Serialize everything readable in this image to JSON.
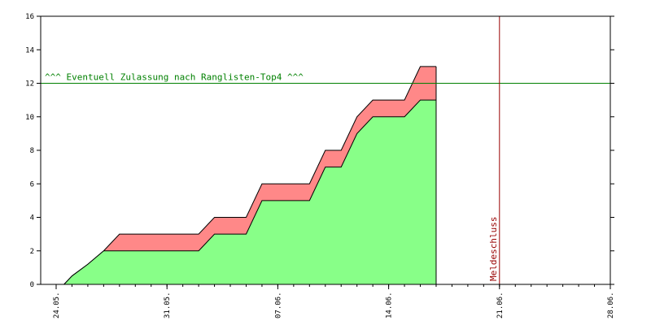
{
  "chart_data": {
    "type": "area",
    "title": "",
    "xlabel": "",
    "ylabel": "",
    "ylim": [
      0,
      16
    ],
    "y_ticks": [
      "0",
      "2",
      "4",
      "6",
      "8",
      "10",
      "12",
      "14",
      "16"
    ],
    "x_range_days": [
      "2020-05-23",
      "2020-06-28"
    ],
    "x_ticks": [
      {
        "date": "2020-05-24",
        "label": "24.05."
      },
      {
        "date": "2020-05-31",
        "label": "31.05."
      },
      {
        "date": "2020-06-07",
        "label": "07.06."
      },
      {
        "date": "2020-06-14",
        "label": "14.06."
      },
      {
        "date": "2020-06-21",
        "label": "21.06."
      },
      {
        "date": "2020-06-28",
        "label": "28.06."
      }
    ],
    "series": [
      {
        "color": "#88ff88",
        "points": [
          [
            "2020-05-24 12:00",
            0
          ],
          [
            "2020-05-25",
            0.5
          ],
          [
            "2020-05-26",
            1.2
          ],
          [
            "2020-05-27",
            2
          ],
          [
            "2020-06-02",
            2
          ],
          [
            "2020-06-03",
            3
          ],
          [
            "2020-06-05",
            3
          ],
          [
            "2020-06-06",
            5
          ],
          [
            "2020-06-09",
            5
          ],
          [
            "2020-06-10",
            7
          ],
          [
            "2020-06-11",
            7
          ],
          [
            "2020-06-12",
            9
          ],
          [
            "2020-06-13",
            10
          ],
          [
            "2020-06-15",
            10
          ],
          [
            "2020-06-16",
            11
          ],
          [
            "2020-06-17",
            11
          ]
        ]
      },
      {
        "color": "#ff8888",
        "points": [
          [
            "2020-05-24 12:00",
            0
          ],
          [
            "2020-05-25",
            0.5
          ],
          [
            "2020-05-26",
            1.2
          ],
          [
            "2020-05-27",
            2
          ],
          [
            "2020-05-28",
            3
          ],
          [
            "2020-06-02",
            3
          ],
          [
            "2020-06-03",
            4
          ],
          [
            "2020-06-05",
            4
          ],
          [
            "2020-06-06",
            6
          ],
          [
            "2020-06-09",
            6
          ],
          [
            "2020-06-10",
            8
          ],
          [
            "2020-06-11",
            8
          ],
          [
            "2020-06-12",
            10
          ],
          [
            "2020-06-13",
            11
          ],
          [
            "2020-06-15",
            11
          ],
          [
            "2020-06-16",
            13
          ],
          [
            "2020-06-17",
            13
          ]
        ]
      }
    ],
    "threshold": {
      "y": 12,
      "label": "^^^ Eventuell Zulassung nach Ranglisten-Top4 ^^^",
      "color": "#008000"
    },
    "deadline": {
      "date": "2020-06-21",
      "label": "Meldeschluss",
      "color": "#990000"
    }
  }
}
